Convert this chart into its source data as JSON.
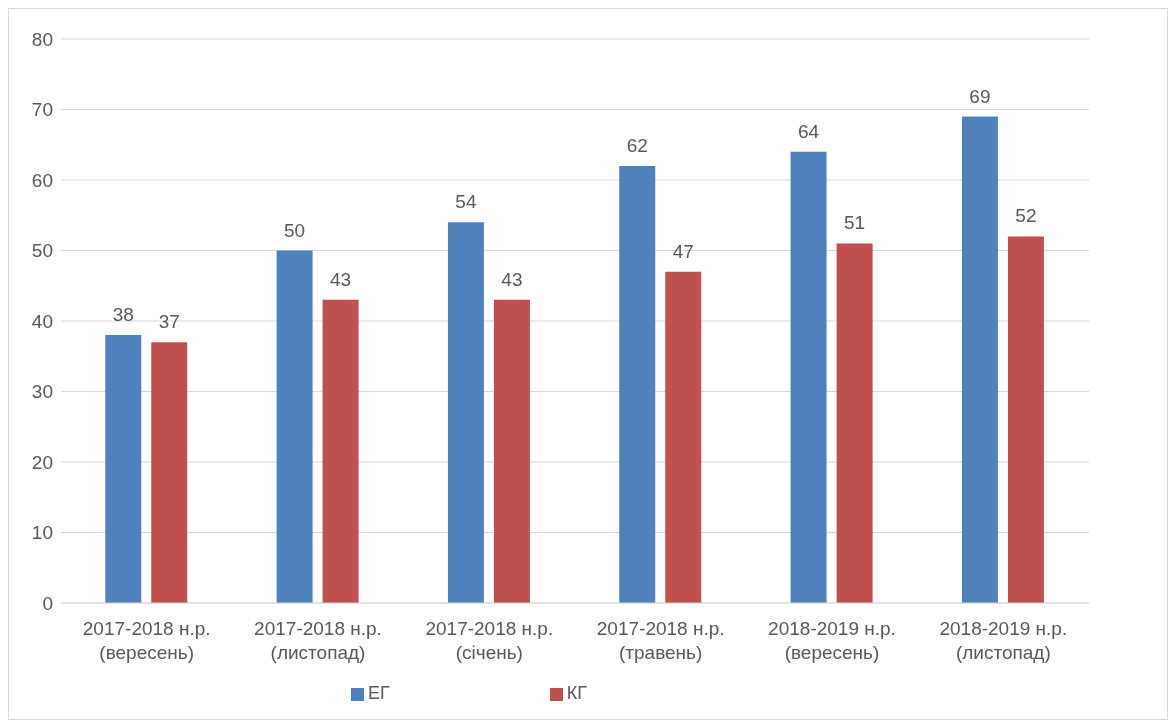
{
  "chart_data": {
    "type": "bar",
    "categories": [
      "2017-2018 н.р. (вересень)",
      "2017-2018 н.р. (листопад)",
      "2017-2018 н.р. (січень)",
      "2017-2018 н.р. (травень)",
      "2018-2019 н.р. (вересень)",
      "2018-2019 н.р. (листопад)"
    ],
    "series": [
      {
        "name": "ЕГ",
        "color": "#4f81bd",
        "values": [
          38,
          50,
          54,
          62,
          64,
          69
        ]
      },
      {
        "name": "КГ",
        "color": "#c0504d",
        "values": [
          37,
          43,
          43,
          47,
          51,
          52
        ]
      }
    ],
    "ylim": [
      0,
      80
    ],
    "yticks": [
      0,
      10,
      20,
      30,
      40,
      50,
      60,
      70,
      80
    ],
    "grid": "y",
    "legend": "bottom",
    "data_labels": true
  }
}
